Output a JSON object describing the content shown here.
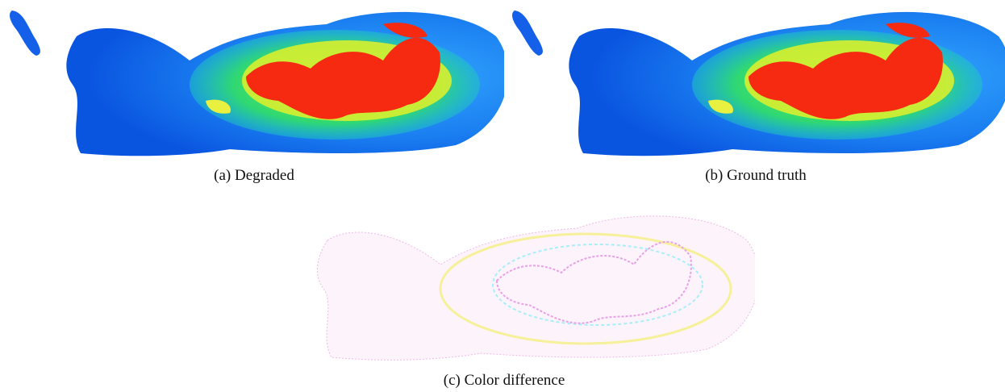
{
  "figure": {
    "panels": [
      {
        "caption": "(a) Degraded"
      },
      {
        "caption": "(b) Ground truth"
      },
      {
        "caption": "(c) Color difference"
      }
    ]
  }
}
